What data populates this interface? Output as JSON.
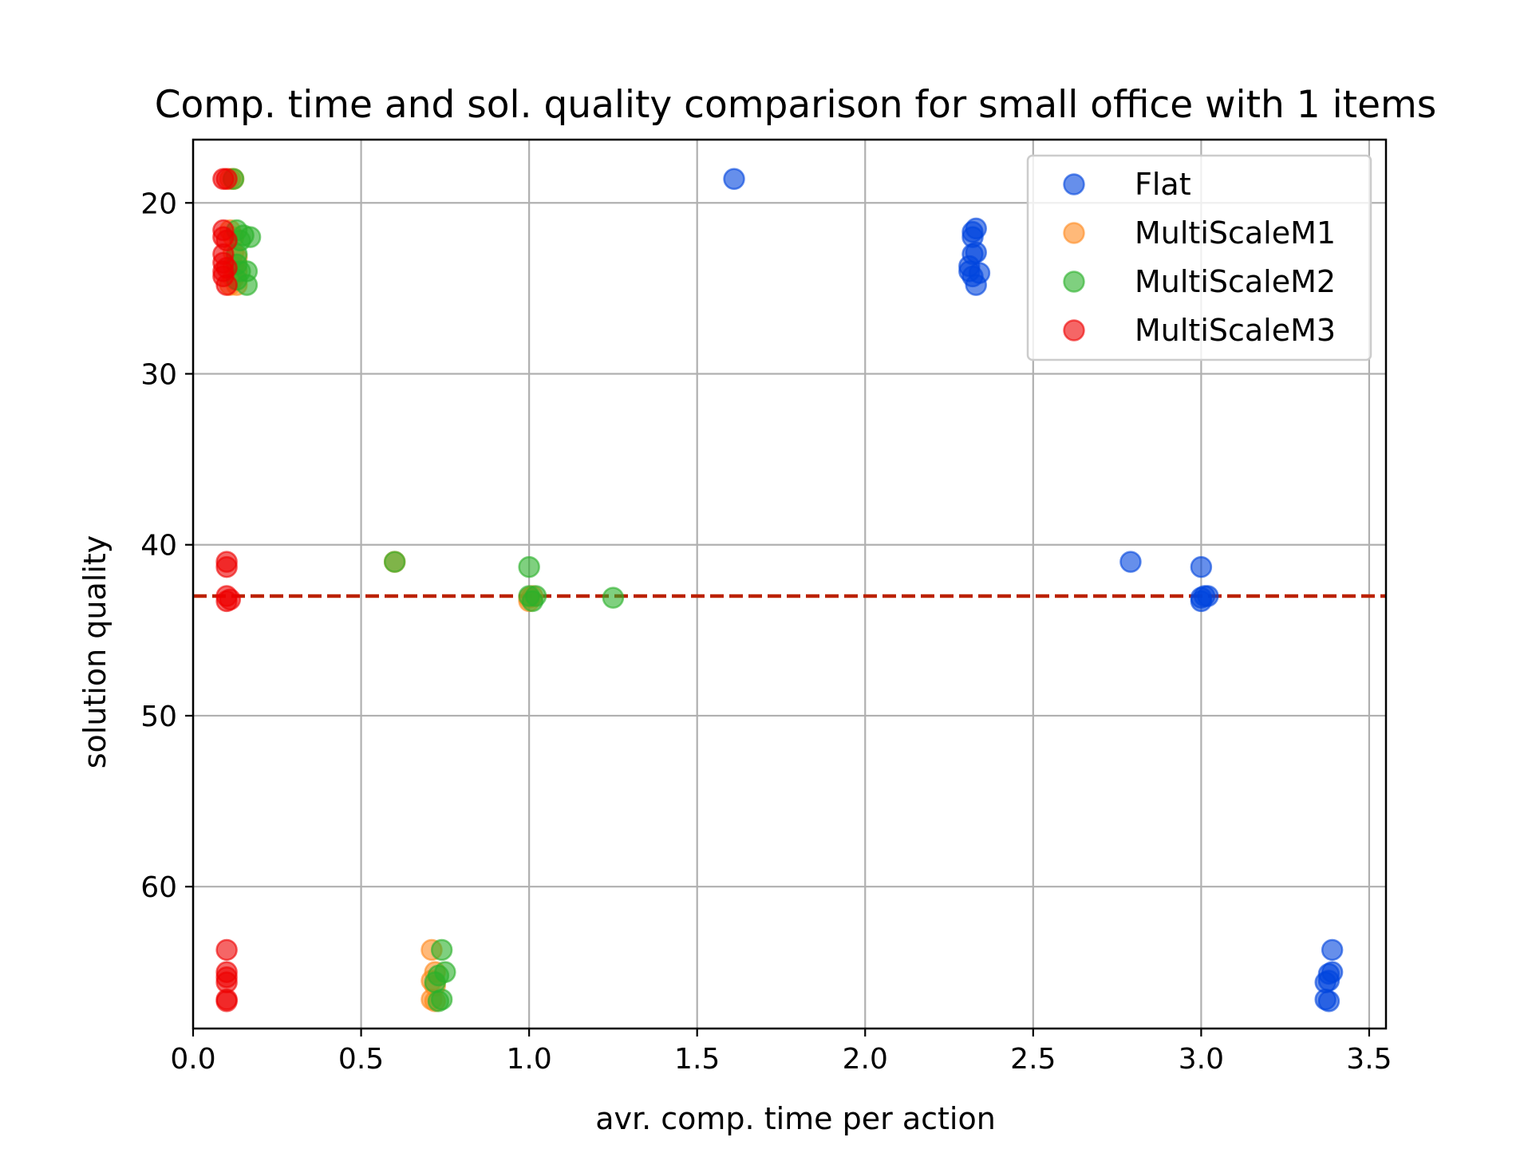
{
  "chart_data": {
    "type": "scatter",
    "title": "Comp. time and sol. quality comparison for small office with 1 items",
    "xlabel": "avr. comp. time per action",
    "ylabel": "solution quality",
    "xlim": [
      0.0,
      3.55
    ],
    "ylim": [
      68.3,
      16.3
    ],
    "y_inverted": true,
    "grid": true,
    "legend_position": "top-right",
    "x_ticks": [
      0.0,
      0.5,
      1.0,
      1.5,
      2.0,
      2.5,
      3.0,
      3.5
    ],
    "x_tick_labels": [
      "0.0",
      "0.5",
      "1.0",
      "1.5",
      "2.0",
      "2.5",
      "3.0",
      "3.5"
    ],
    "y_ticks": [
      20,
      30,
      40,
      50,
      60
    ],
    "y_tick_labels": [
      "20",
      "30",
      "40",
      "50",
      "60"
    ],
    "reference_line": {
      "y": 43.0,
      "style": "dashed",
      "color": "#bb2200"
    },
    "series": [
      {
        "name": "Flat",
        "color": "#0044dd",
        "points": [
          [
            1.61,
            18.6
          ],
          [
            2.32,
            21.7
          ],
          [
            2.33,
            21.5
          ],
          [
            2.32,
            22.0
          ],
          [
            2.32,
            23.0
          ],
          [
            2.33,
            22.9
          ],
          [
            2.31,
            23.7
          ],
          [
            2.31,
            24.0
          ],
          [
            2.32,
            24.3
          ],
          [
            2.34,
            24.1
          ],
          [
            2.33,
            24.8
          ],
          [
            2.79,
            41.0
          ],
          [
            3.0,
            41.3
          ],
          [
            3.0,
            43.1
          ],
          [
            3.0,
            43.3
          ],
          [
            3.01,
            43.0
          ],
          [
            3.02,
            43.0
          ],
          [
            3.39,
            63.7
          ],
          [
            3.38,
            65.1
          ],
          [
            3.39,
            65.0
          ],
          [
            3.38,
            65.5
          ],
          [
            3.37,
            65.6
          ],
          [
            3.38,
            66.7
          ],
          [
            3.37,
            66.6
          ]
        ]
      },
      {
        "name": "MultiScaleM1",
        "color": "#ff8a1f",
        "points": [
          [
            0.11,
            18.6
          ],
          [
            0.12,
            18.6
          ],
          [
            0.11,
            21.6
          ],
          [
            0.12,
            22.0
          ],
          [
            0.12,
            22.9
          ],
          [
            0.13,
            23.2
          ],
          [
            0.12,
            23.7
          ],
          [
            0.13,
            24.0
          ],
          [
            0.12,
            24.4
          ],
          [
            0.13,
            24.8
          ],
          [
            0.11,
            24.8
          ],
          [
            0.6,
            41.0
          ],
          [
            1.0,
            43.1
          ],
          [
            1.0,
            43.3
          ],
          [
            1.01,
            43.0
          ],
          [
            0.71,
            63.7
          ],
          [
            0.72,
            65.0
          ],
          [
            0.71,
            65.5
          ],
          [
            0.72,
            65.8
          ],
          [
            0.71,
            66.6
          ],
          [
            0.72,
            66.7
          ]
        ]
      },
      {
        "name": "MultiScaleM2",
        "color": "#2ab02a",
        "points": [
          [
            0.12,
            18.6
          ],
          [
            0.13,
            21.6
          ],
          [
            0.15,
            21.9
          ],
          [
            0.17,
            22.0
          ],
          [
            0.14,
            22.2
          ],
          [
            0.13,
            23.0
          ],
          [
            0.13,
            23.6
          ],
          [
            0.14,
            24.0
          ],
          [
            0.16,
            24.0
          ],
          [
            0.13,
            24.5
          ],
          [
            0.16,
            24.8
          ],
          [
            0.6,
            41.0
          ],
          [
            1.0,
            41.3
          ],
          [
            1.0,
            43.0
          ],
          [
            1.01,
            43.3
          ],
          [
            1.02,
            43.0
          ],
          [
            1.25,
            43.1
          ],
          [
            0.74,
            63.7
          ],
          [
            0.75,
            65.0
          ],
          [
            0.73,
            65.2
          ],
          [
            0.72,
            65.6
          ],
          [
            0.73,
            66.7
          ],
          [
            0.74,
            66.6
          ]
        ]
      },
      {
        "name": "MultiScaleM3",
        "color": "#ee0000",
        "points": [
          [
            0.09,
            18.6
          ],
          [
            0.1,
            18.6
          ],
          [
            0.09,
            21.6
          ],
          [
            0.09,
            22.0
          ],
          [
            0.1,
            22.2
          ],
          [
            0.09,
            23.0
          ],
          [
            0.09,
            23.5
          ],
          [
            0.1,
            23.8
          ],
          [
            0.09,
            24.0
          ],
          [
            0.09,
            24.3
          ],
          [
            0.1,
            24.8
          ],
          [
            0.1,
            41.0
          ],
          [
            0.1,
            41.3
          ],
          [
            0.1,
            43.0
          ],
          [
            0.1,
            43.3
          ],
          [
            0.11,
            43.2
          ],
          [
            0.1,
            63.7
          ],
          [
            0.1,
            65.0
          ],
          [
            0.1,
            65.3
          ],
          [
            0.1,
            65.6
          ],
          [
            0.1,
            66.6
          ],
          [
            0.1,
            66.7
          ]
        ]
      }
    ]
  }
}
